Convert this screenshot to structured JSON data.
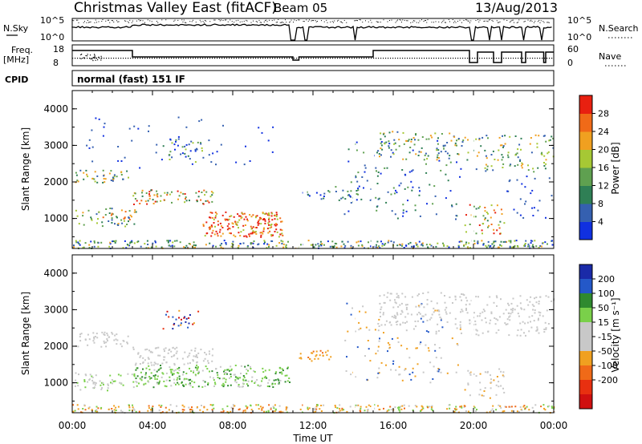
{
  "header": {
    "title": "Christmas Valley East (fitACF)",
    "beam": "Beam 05",
    "date": "13/Aug/2013"
  },
  "nsky_panel": {
    "left_label": "N.Sky",
    "left_ticks": [
      "10^5",
      "10^0"
    ],
    "right_ticks": [
      "10^5",
      "10^0"
    ],
    "right_label": "N.Search"
  },
  "freq_panel": {
    "left_label_1": "Freq.",
    "left_label_2": "[MHz]",
    "left_ticks": [
      "18",
      "8"
    ],
    "right_ticks": [
      "60",
      "0"
    ],
    "right_label": "Nave"
  },
  "cpid": {
    "label": "CPID",
    "mode": "normal (fast) 151 IF"
  },
  "colors": {
    "power_scale": [
      "#1030e0",
      "#3560b0",
      "#2f7f55",
      "#5fa050",
      "#a6c834",
      "#f0a020",
      "#f06a18",
      "#e82010"
    ],
    "velocity_scale": [
      "#1a2aa8",
      "#2458c8",
      "#2f8a2f",
      "#7ad04a",
      "#c8c8c8",
      "#c8c8c8",
      "#f0a020",
      "#f06a18",
      "#e83010",
      "#d01010"
    ]
  },
  "chart_data": [
    {
      "type": "heatmap",
      "name": "power",
      "ylabel": "Slant Range [km]",
      "yticks": [
        "1000",
        "2000",
        "3000",
        "4000"
      ],
      "ylim": [
        180,
        4500
      ],
      "xlim": [
        0,
        24
      ],
      "colorbar": {
        "label": "Power [dB]",
        "ticks": [
          "4",
          "8",
          "12",
          "16",
          "20",
          "24",
          "28"
        ],
        "range": [
          0,
          32
        ]
      }
    },
    {
      "type": "heatmap",
      "name": "velocity",
      "ylabel": "Slant Range [km]",
      "yticks": [
        "1000",
        "2000",
        "3000",
        "4000"
      ],
      "ylim": [
        180,
        4500
      ],
      "xlim": [
        0,
        24
      ],
      "colorbar": {
        "label": "Velocity [m s⁻¹]",
        "ticks": [
          "200",
          "100",
          "50",
          "15",
          "-15",
          "-50",
          "-100",
          "-200"
        ]
      }
    }
  ],
  "xaxis": {
    "ticks": [
      "00:00",
      "04:00",
      "08:00",
      "12:00",
      "16:00",
      "20:00",
      "00:00"
    ],
    "label": "Time UT"
  }
}
